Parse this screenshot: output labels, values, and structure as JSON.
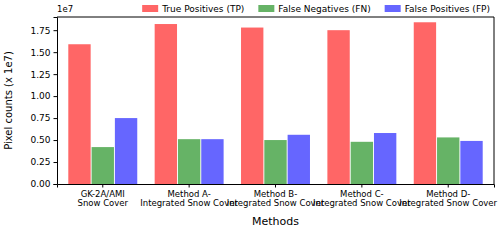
{
  "chart_data": {
    "type": "bar",
    "x_label": "Methods",
    "y_label": "Pixel counts (x 1e7)",
    "annotations": [
      "1e7"
    ],
    "categories": [
      "GK-2A/AMI\nSnow Cover",
      "Method A-\nIntegrated Snow Cover",
      "Method B-\nIntegrated Snow Cover",
      "Method C-\nIntegrated Snow Cover",
      "Method D-\nIntegrated Snow Cover"
    ],
    "series": [
      {
        "name": "True Positives (TP)",
        "color": "#ff6666",
        "values": [
          1.59,
          1.82,
          1.78,
          1.75,
          1.84
        ]
      },
      {
        "name": "False Negatives (FN)",
        "color": "#66b366",
        "values": [
          0.42,
          0.51,
          0.5,
          0.48,
          0.53
        ]
      },
      {
        "name": "False Positives (FP)",
        "color": "#6666ff",
        "values": [
          0.75,
          0.51,
          0.56,
          0.58,
          0.49
        ]
      }
    ],
    "ylim": [
      0,
      1.9
    ],
    "yticks": [
      {
        "value": 0,
        "label": "0.00"
      },
      {
        "value": 0.25,
        "label": "0.25"
      },
      {
        "value": 0.5,
        "label": "0.50"
      },
      {
        "value": 0.75,
        "label": "0.75"
      },
      {
        "value": 1.0,
        "label": "1.00"
      },
      {
        "value": 1.25,
        "label": "1.25"
      },
      {
        "value": 1.5,
        "label": "1.50"
      },
      {
        "value": 1.75,
        "label": "1.75"
      }
    ],
    "grid": false,
    "legend": "top"
  }
}
